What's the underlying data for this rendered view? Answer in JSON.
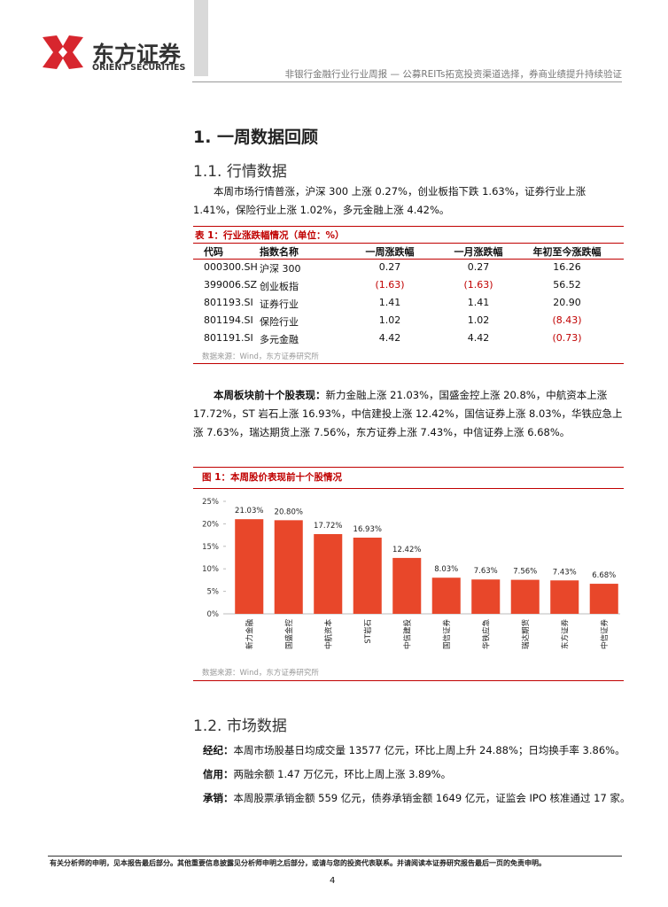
{
  "header": {
    "logo_cn": "东方证券",
    "logo_en": "ORIENT SECURITIES",
    "running_title": "非银行金融行业行业周报 — 公募REITs拓宽投资渠道选择，券商业绩提升持续验证"
  },
  "section_1": {
    "title": "1.  一周数据回顾"
  },
  "section_1_1": {
    "title": "1.1.   行情数据",
    "paragraph": "本周市场行情普涨，沪深 300 上涨 0.27%，创业板指下跌 1.63%，证券行业上涨 1.41%，保险行业上涨 1.02%，多元金融上涨 4.42%。"
  },
  "table": {
    "caption": "表 1：行业涨跌幅情况（单位：%）",
    "columns": [
      "代码",
      "指数名称",
      "一周涨跌幅",
      "一月涨跌幅",
      "年初至今涨跌幅"
    ],
    "rows": [
      [
        "000300.SH",
        "沪深 300",
        "0.27",
        "0.27",
        "16.26"
      ],
      [
        "399006.SZ",
        "创业板指",
        "(1.63)",
        "(1.63)",
        "56.52"
      ],
      [
        "801193.SI",
        "证券行业",
        "1.41",
        "1.41",
        "20.90"
      ],
      [
        "801194.SI",
        "保险行业",
        "1.02",
        "1.02",
        "(8.43)"
      ],
      [
        "801191.SI",
        "多元金融",
        "4.42",
        "4.42",
        "(0.73)"
      ]
    ],
    "source": "数据来源：Wind，东方证券研究所"
  },
  "paragraph_2": {
    "lead": "本周板块前十个股表现：",
    "text": "新力金融上涨 21.03%，国盛金控上涨 20.8%，中航资本上涨 17.72%，ST 岩石上涨 16.93%，中信建投上涨 12.42%，国信证券上涨 8.03%，华铁应急上涨 7.63%，瑞达期货上涨 7.56%，东方证券上涨 7.43%，中信证券上涨 6.68%。"
  },
  "figure": {
    "caption": "图 1：本周股价表现前十个股情况",
    "source": "数据来源：Wind，东方证券研究所",
    "chart_data": {
      "type": "bar",
      "categories": [
        "新力金融",
        "国盛金控",
        "中航资本",
        "ST岩石",
        "中信建投",
        "国信证券",
        "华铁应急",
        "瑞达期货",
        "东方证券",
        "中信证券"
      ],
      "values": [
        21.03,
        20.8,
        17.72,
        16.93,
        12.42,
        8.03,
        7.63,
        7.56,
        7.43,
        6.68
      ],
      "value_labels": [
        "21.03%",
        "20.80%",
        "17.72%",
        "16.93%",
        "12.42%",
        "8.03%",
        "7.63%",
        "7.56%",
        "7.43%",
        "6.68%"
      ],
      "color": "#e8472a",
      "ylim": [
        0,
        25
      ],
      "yticks": [
        {
          "value": 0,
          "label": "0%"
        },
        {
          "value": 5,
          "label": "5%"
        },
        {
          "value": 10,
          "label": "10%"
        },
        {
          "value": 15,
          "label": "15%"
        },
        {
          "value": 20,
          "label": "20%"
        },
        {
          "value": 25,
          "label": "25%"
        }
      ]
    }
  },
  "section_1_2": {
    "title": "1.2.   市场数据",
    "items": [
      {
        "lead": "经纪：",
        "text": "本周市场股基日均成交量 13577 亿元，环比上周上升 24.88%；日均换手率 3.86%。"
      },
      {
        "lead": "信用：",
        "text": "两融余额 1.47 万亿元，环比上周上涨 3.89%。"
      },
      {
        "lead": "承销：",
        "text": "本周股票承销金额 559 亿元，债券承销金额 1649 亿元，证监会 IPO 核准通过 17 家。"
      }
    ]
  },
  "footer": {
    "disclaimer": "有关分析师的申明，见本报告最后部分。其他重要信息披露见分析师申明之后部分，或请与您的投资代表联系。并请阅读本证券研究报告最后一页的免责申明。",
    "page": "4"
  }
}
